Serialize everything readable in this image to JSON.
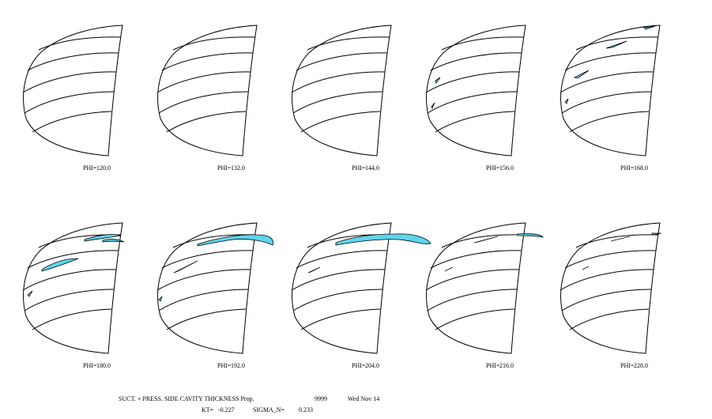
{
  "panels": [
    {
      "label": "PHI=",
      "value": "120.0"
    },
    {
      "label": "PHI=",
      "value": "132.0"
    },
    {
      "label": "PHI=",
      "value": "144.0"
    },
    {
      "label": "PHI=",
      "value": "156.0"
    },
    {
      "label": "PHI=",
      "value": "168.0"
    },
    {
      "label": "PHI=",
      "value": "180.0"
    },
    {
      "label": "PHI=",
      "value": "192.0"
    },
    {
      "label": "PHI=",
      "value": "204.0"
    },
    {
      "label": "PHI=",
      "value": "216.0"
    },
    {
      "label": "PHI=",
      "value": "228.0"
    }
  ],
  "footer": {
    "title": "SUCT. + PRESS. SIDE CAVITY THICKNESS Prop.",
    "prop": "9999",
    "date": "Wed Nov 14",
    "kt_label": "KT=",
    "kt_value": "-0.227",
    "sigma_label": "SIGMA_N=",
    "sigma_value": "0.233"
  }
}
